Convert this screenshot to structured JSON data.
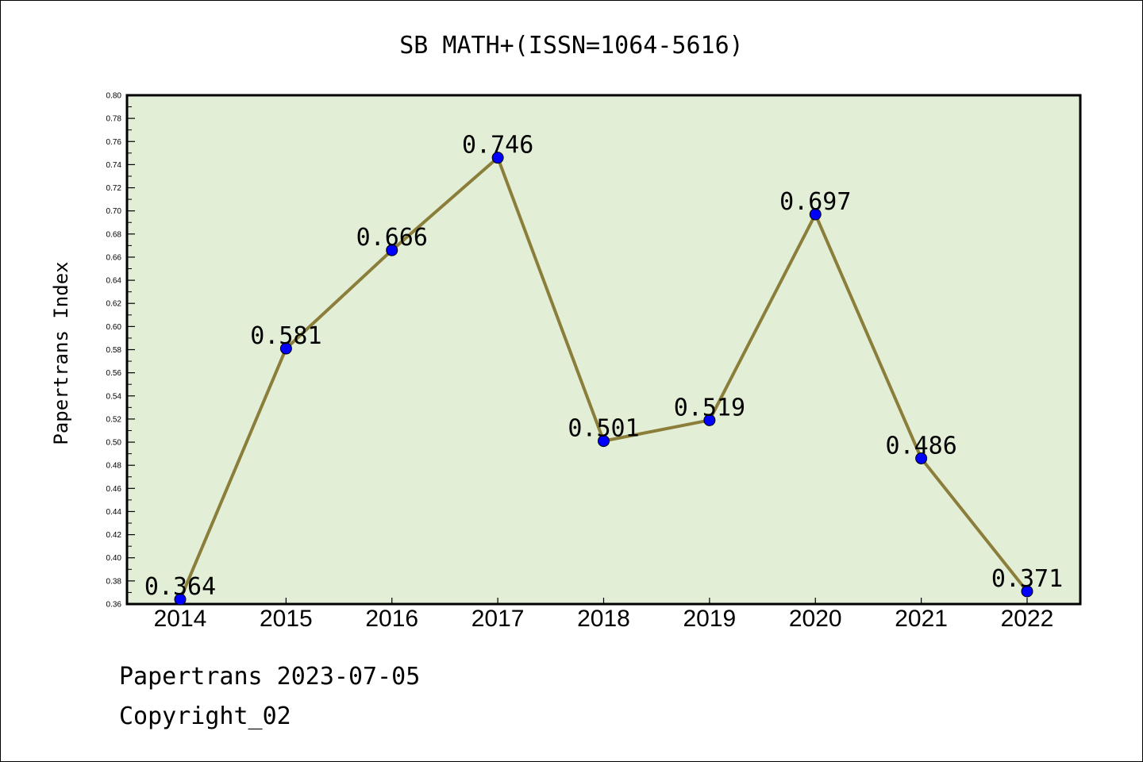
{
  "chart_data": {
    "type": "line",
    "title": "SB MATH+(ISSN=1064-5616)",
    "xlabel": "",
    "ylabel": "Papertrans Index",
    "categories": [
      "2014",
      "2015",
      "2016",
      "2017",
      "2018",
      "2019",
      "2020",
      "2021",
      "2022"
    ],
    "series": [
      {
        "values": [
          0.364,
          0.581,
          0.666,
          0.746,
          0.501,
          0.519,
          0.697,
          0.486,
          0.371
        ]
      }
    ],
    "data_labels": [
      "0.364",
      "0.581",
      "0.666",
      "0.746",
      "0.501",
      "0.519",
      "0.697",
      "0.486",
      "0.371"
    ],
    "ylim": [
      0.36,
      0.8
    ],
    "ytick_step": 0.02,
    "grid": false,
    "legend": "none",
    "colors": {
      "plot_background": "#e2efd6",
      "line": "#8b7d3a",
      "marker": "#0000ff"
    }
  },
  "footer": {
    "line1": "Papertrans 2023-07-05",
    "line2": "Copyright_02"
  }
}
